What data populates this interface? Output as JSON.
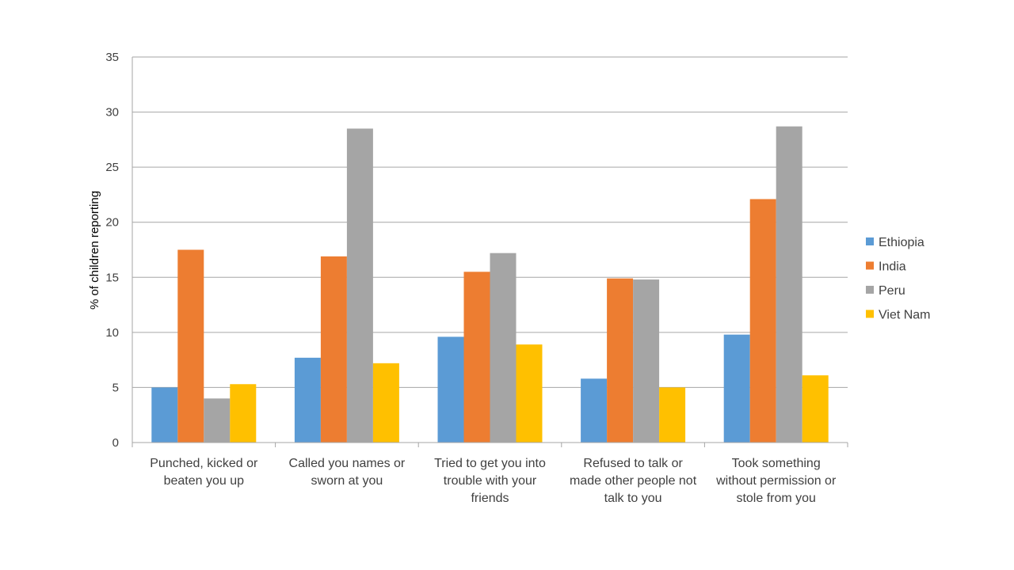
{
  "chart_data": {
    "type": "bar",
    "title": "",
    "xlabel": "",
    "ylabel": "% of children reporting",
    "ylim": [
      0,
      35
    ],
    "yticks": [
      0,
      5,
      10,
      15,
      20,
      25,
      30,
      35
    ],
    "grid": true,
    "legend_position": "right",
    "categories": [
      [
        "Punched, kicked or",
        "beaten you up"
      ],
      [
        "Called you names or",
        "sworn at you"
      ],
      [
        "Tried to get you into",
        "trouble with your",
        "friends"
      ],
      [
        "Refused to talk or",
        "made other people not",
        "talk to you"
      ],
      [
        "Took something",
        "without permission or",
        "stole from you"
      ]
    ],
    "series": [
      {
        "name": "Ethiopia",
        "color": "#5b9bd5",
        "values": [
          5.0,
          7.7,
          9.6,
          5.8,
          9.8
        ]
      },
      {
        "name": "India",
        "color": "#ed7d31",
        "values": [
          17.5,
          16.9,
          15.5,
          14.9,
          22.1
        ]
      },
      {
        "name": "Peru",
        "color": "#a5a5a5",
        "values": [
          4.0,
          28.5,
          17.2,
          14.8,
          28.7
        ]
      },
      {
        "name": "Viet Nam",
        "color": "#ffc000",
        "values": [
          5.3,
          7.2,
          8.9,
          5.0,
          6.1
        ]
      }
    ]
  }
}
